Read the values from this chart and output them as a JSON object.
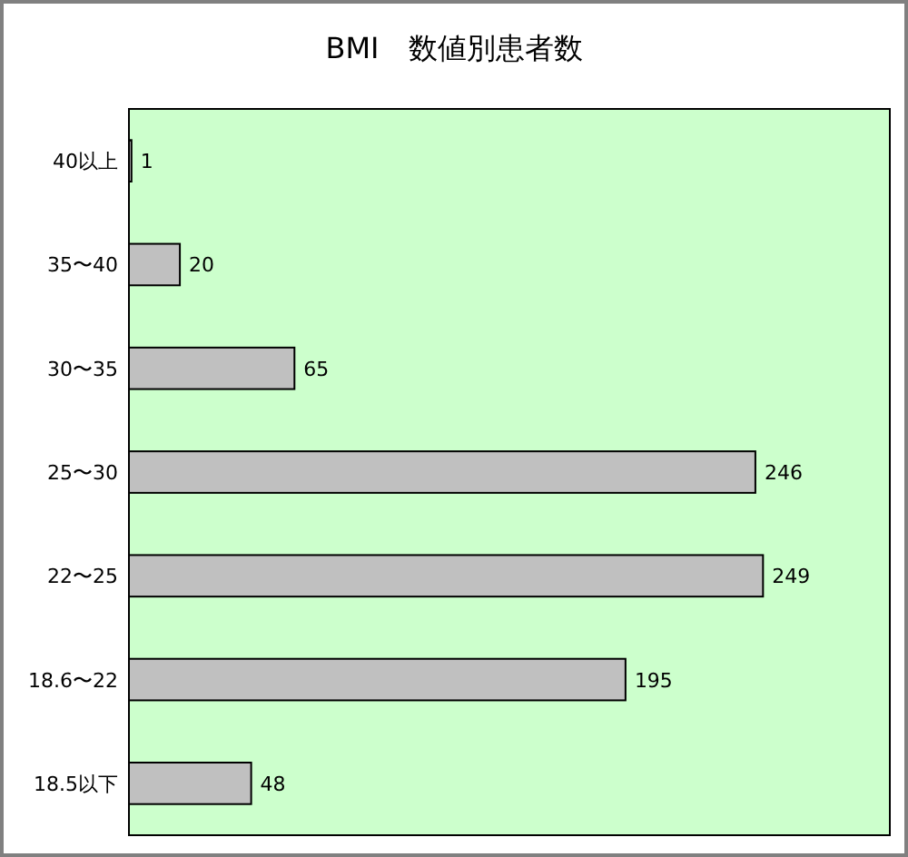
{
  "chart_data": {
    "type": "bar",
    "orientation": "horizontal",
    "title": "BMI　数値別患者数",
    "categories": [
      "40以上",
      "35〜40",
      "30〜35",
      "25〜30",
      "22〜25",
      "18.6〜22",
      "18.5以下"
    ],
    "values": [
      1,
      20,
      65,
      246,
      249,
      195,
      48
    ],
    "color": "#c0c0c0",
    "data_labels": true
  }
}
